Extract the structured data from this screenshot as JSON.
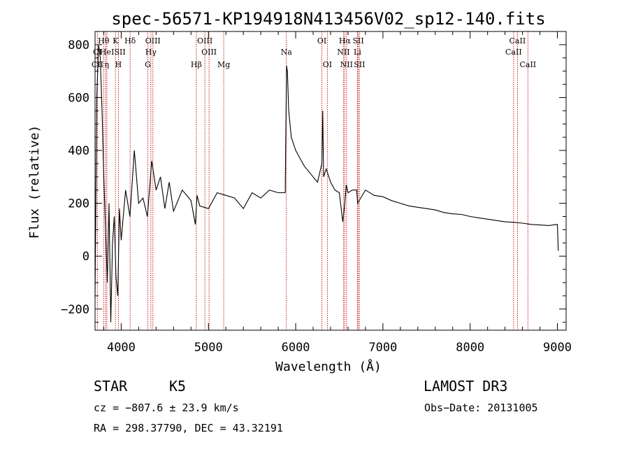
{
  "chart_data": {
    "type": "line",
    "title": "spec-56571-KP194918N413456V02_sp12-140.fits",
    "xlabel": "Wavelength (Å)",
    "ylabel": "Flux (relative)",
    "xlim": [
      3700,
      9100
    ],
    "ylim": [
      -280,
      850
    ],
    "xticks": [
      4000,
      5000,
      6000,
      7000,
      8000,
      9000
    ],
    "yticks": [
      -200,
      0,
      200,
      400,
      600,
      800
    ],
    "xtick_labels": [
      "4000",
      "5000",
      "6000",
      "7000",
      "8000",
      "9000"
    ],
    "ytick_labels": [
      "−200",
      "0",
      "200",
      "400",
      "600",
      "800"
    ],
    "series": [
      {
        "name": "flux",
        "x": [
          3700,
          3720,
          3740,
          3760,
          3780,
          3800,
          3820,
          3840,
          3860,
          3880,
          3900,
          3920,
          3940,
          3960,
          3980,
          4000,
          4050,
          4100,
          4150,
          4200,
          4250,
          4300,
          4350,
          4400,
          4450,
          4500,
          4550,
          4600,
          4700,
          4800,
          4850,
          4870,
          4900,
          5000,
          5100,
          5200,
          5300,
          5400,
          5500,
          5600,
          5700,
          5800,
          5850,
          5880,
          5895,
          5905,
          5920,
          5950,
          6000,
          6050,
          6100,
          6150,
          6200,
          6250,
          6300,
          6310,
          6320,
          6350,
          6400,
          6450,
          6500,
          6540,
          6563,
          6580,
          6600,
          6650,
          6700,
          6710,
          6800,
          6900,
          7000,
          7100,
          7200,
          7300,
          7400,
          7500,
          7600,
          7700,
          7800,
          7900,
          8000,
          8100,
          8200,
          8300,
          8400,
          8500,
          8600,
          8700,
          8800,
          8900,
          9000,
          9010
        ],
        "y": [
          -150,
          600,
          800,
          750,
          550,
          300,
          100,
          -100,
          200,
          -250,
          50,
          150,
          -80,
          -150,
          180,
          60,
          250,
          150,
          400,
          200,
          220,
          150,
          360,
          250,
          300,
          180,
          280,
          170,
          250,
          210,
          120,
          230,
          190,
          180,
          240,
          230,
          220,
          180,
          240,
          220,
          250,
          240,
          240,
          240,
          720,
          700,
          550,
          450,
          400,
          370,
          340,
          320,
          300,
          280,
          350,
          550,
          300,
          330,
          280,
          250,
          240,
          130,
          200,
          270,
          240,
          250,
          250,
          200,
          250,
          230,
          225,
          210,
          200,
          190,
          185,
          180,
          175,
          165,
          160,
          158,
          150,
          145,
          140,
          135,
          130,
          128,
          125,
          120,
          118,
          116,
          120,
          20
        ]
      }
    ],
    "spectral_lines": [
      {
        "label": "Hθ",
        "wavelength": 3798,
        "row": 1
      },
      {
        "label": "K",
        "wavelength": 3934,
        "row": 1
      },
      {
        "label": "Hδ",
        "wavelength": 4102,
        "row": 1
      },
      {
        "label": "OIII",
        "wavelength": 4363,
        "row": 1
      },
      {
        "label": "OIII",
        "wavelength": 4959,
        "row": 1
      },
      {
        "label": "CaII",
        "wavelength": 8542,
        "row": 1
      },
      {
        "label": "Hα",
        "wavelength": 6563,
        "row": 1
      },
      {
        "label": "SII",
        "wavelength": 6717,
        "row": 1
      },
      {
        "label": "OI",
        "wavelength": 6300,
        "row": 1
      },
      {
        "label": "CI",
        "wavelength": 3727,
        "row": 2
      },
      {
        "label": "He",
        "wavelength": 3820,
        "row": 2
      },
      {
        "label": "ISII",
        "wavelength": 3968,
        "row": 2
      },
      {
        "label": "Hγ",
        "wavelength": 4340,
        "row": 2
      },
      {
        "label": "OIII",
        "wavelength": 5007,
        "row": 2
      },
      {
        "label": "Na",
        "wavelength": 5893,
        "row": 2
      },
      {
        "label": "NII",
        "wavelength": 6548,
        "row": 2
      },
      {
        "label": "Li",
        "wavelength": 6708,
        "row": 2
      },
      {
        "label": "CaII",
        "wavelength": 8498,
        "row": 2
      },
      {
        "label": "CII",
        "wavelength": 3727,
        "row": 3
      },
      {
        "label": "η",
        "wavelength": 3835,
        "row": 3
      },
      {
        "label": "H",
        "wavelength": 3968,
        "row": 3
      },
      {
        "label": "G",
        "wavelength": 4305,
        "row": 3
      },
      {
        "label": "Hβ",
        "wavelength": 4861,
        "row": 3
      },
      {
        "label": "Mg",
        "wavelength": 5175,
        "row": 3
      },
      {
        "label": "OI",
        "wavelength": 6363,
        "row": 3
      },
      {
        "label": "NII",
        "wavelength": 6583,
        "row": 3
      },
      {
        "label": "SII",
        "wavelength": 6731,
        "row": 3
      },
      {
        "label": "CaII",
        "wavelength": 8662,
        "row": 3
      }
    ]
  },
  "footer": {
    "object_type": "STAR",
    "subclass": "K5",
    "survey": "LAMOST DR3",
    "cz": "cz = −807.6 ± 23.9 km/s",
    "obs_date": "Obs−Date: 20131005",
    "coords": "RA = 298.37790, DEC =  43.32191"
  },
  "colors": {
    "line": "#000000",
    "marker": "#cc0000"
  }
}
